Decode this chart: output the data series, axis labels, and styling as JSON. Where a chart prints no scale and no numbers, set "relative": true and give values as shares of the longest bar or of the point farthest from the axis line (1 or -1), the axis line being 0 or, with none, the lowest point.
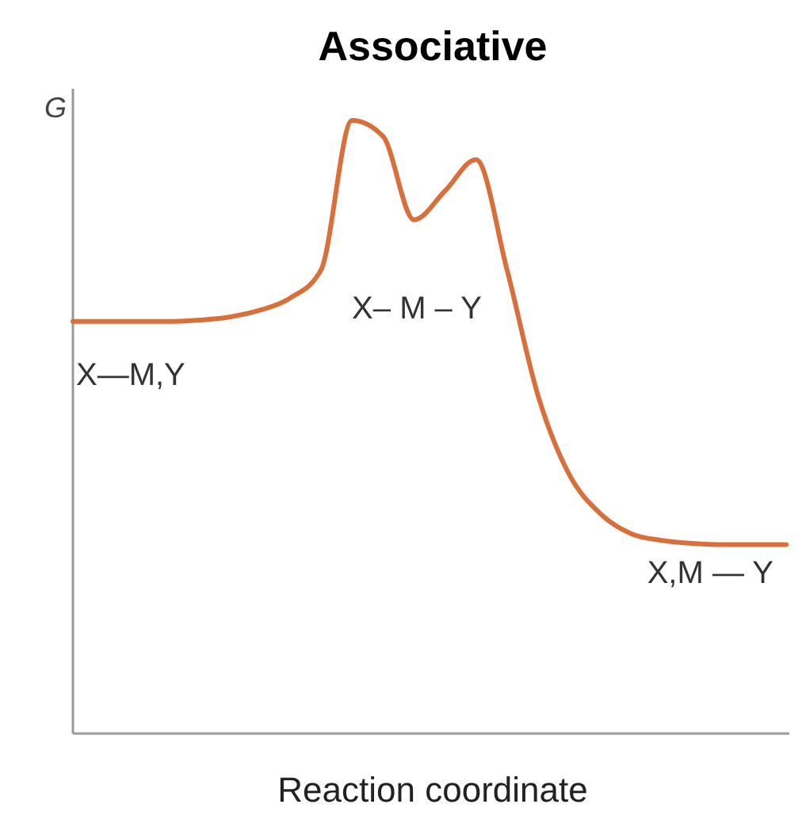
{
  "chart_data": {
    "type": "line",
    "title": "Associative",
    "xlabel": "Reaction coordinate",
    "ylabel": "G",
    "relative": true,
    "categories": [
      null,
      null,
      null,
      null,
      null,
      null,
      null,
      null,
      null,
      null,
      null,
      null,
      null,
      null,
      null,
      null,
      null,
      null,
      null,
      null,
      null,
      null,
      null,
      null
    ],
    "series": [
      {
        "color": "#d9703c",
        "values": [
          0.672,
          0.672,
          0.672,
          0.672,
          0.674,
          0.679,
          0.69,
          0.71,
          0.756,
          1.0,
          0.974,
          0.838,
          0.885,
          0.936,
          0.756,
          0.551,
          0.423,
          0.359,
          0.326,
          0.315,
          0.31,
          0.308,
          0.308,
          0.308
        ]
      }
    ],
    "annotations": [
      "X—M,Y",
      "X– M – Y",
      "X,M — Y"
    ]
  }
}
